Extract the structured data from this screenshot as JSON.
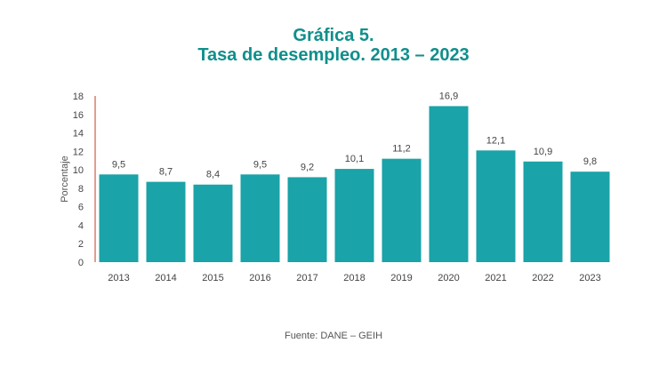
{
  "chart_data": {
    "type": "bar",
    "title": "Gráfica 5.",
    "subtitle": "Tasa de desempleo. 2013 – 2023",
    "xlabel": "",
    "ylabel": "Porcentaje",
    "categories": [
      "2013",
      "2014",
      "2015",
      "2016",
      "2017",
      "2018",
      "2019",
      "2020",
      "2021",
      "2022",
      "2023"
    ],
    "values": [
      9.5,
      8.7,
      8.4,
      9.5,
      9.2,
      10.1,
      11.2,
      16.9,
      12.1,
      10.9,
      9.8
    ],
    "value_labels": [
      "9,5",
      "8,7",
      "8,4",
      "9,5",
      "9,2",
      "10,1",
      "11,2",
      "16,9",
      "12,1",
      "10,9",
      "9,8"
    ],
    "ylim": [
      0,
      18
    ],
    "yticks": [
      0,
      2,
      4,
      6,
      8,
      10,
      12,
      14,
      16,
      18
    ],
    "grid": false,
    "legend": "none",
    "bar_color": "#1aa3a8",
    "axis_color": "#c0392b",
    "source": "Fuente: DANE – GEIH"
  }
}
